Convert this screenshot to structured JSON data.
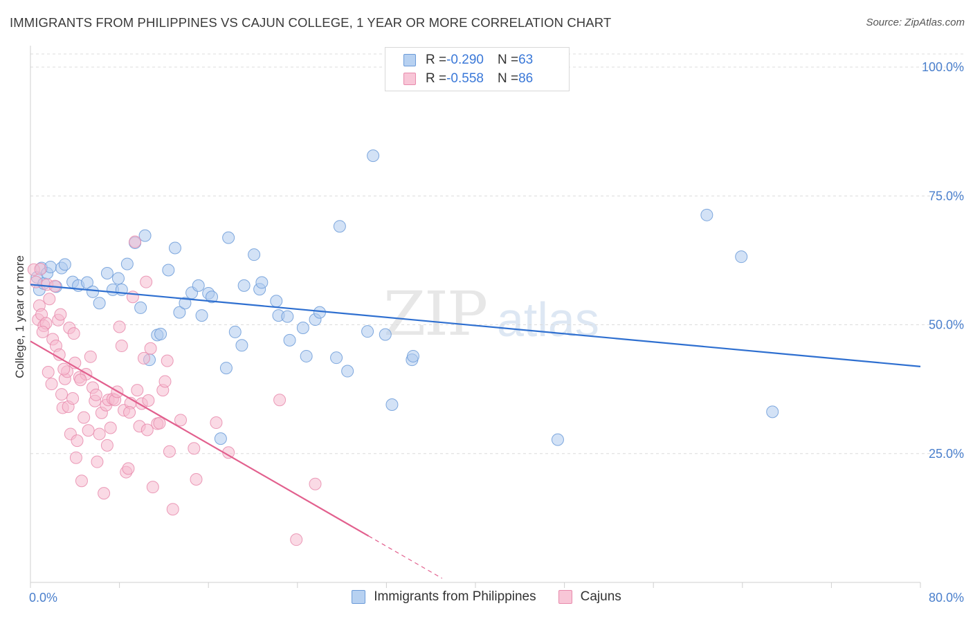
{
  "title": "IMMIGRANTS FROM PHILIPPINES VS CAJUN COLLEGE, 1 YEAR OR MORE CORRELATION CHART",
  "source": "Source: ZipAtlas.com",
  "watermark": {
    "part1": "ZIP",
    "part2": "atlas"
  },
  "legend": {
    "rows": [
      {
        "r_label": "R = ",
        "r_value": "-0.290",
        "n_label": "N = ",
        "n_value": "63"
      },
      {
        "r_label": "R = ",
        "r_value": "-0.558",
        "n_label": "N = ",
        "n_value": "86"
      }
    ]
  },
  "bottom_legend": [
    "Immigrants from Philippines",
    "Cajuns"
  ],
  "chart_data": {
    "type": "scatter",
    "title": "IMMIGRANTS FROM PHILIPPINES VS CAJUN COLLEGE, 1 YEAR OR MORE CORRELATION CHART",
    "xlabel": "",
    "ylabel": "College, 1 year or more",
    "xlim": [
      0,
      80
    ],
    "ylim": [
      0,
      105
    ],
    "x_tick_labels": [
      "0.0%",
      "80.0%"
    ],
    "y_tick_labels": [
      "100.0%",
      "75.0%",
      "50.0%",
      "25.0%"
    ],
    "y_ticks": [
      100,
      75,
      50,
      25
    ],
    "grid": true,
    "colors": {
      "blue_fill": "#aecbef",
      "blue_stroke": "#6a9ad8",
      "blue_line": "#2e6fd0",
      "pink_fill": "#f6bcd0",
      "pink_stroke": "#e88aac",
      "pink_line": "#e2608e"
    },
    "series": [
      {
        "name": "Immigrants from Philippines",
        "trend": {
          "x0": 0,
          "y0": 57.8,
          "x1": 80,
          "y1": 41.9
        },
        "points": [
          [
            0.6,
            59.2
          ],
          [
            0.8,
            56.8
          ],
          [
            1.0,
            61.0
          ],
          [
            1.2,
            58.0
          ],
          [
            1.5,
            60.0
          ],
          [
            1.8,
            61.2
          ],
          [
            2.3,
            57.4
          ],
          [
            2.8,
            61.0
          ],
          [
            3.1,
            61.7
          ],
          [
            3.8,
            58.3
          ],
          [
            4.3,
            57.6
          ],
          [
            5.1,
            58.2
          ],
          [
            5.6,
            56.4
          ],
          [
            6.2,
            54.2
          ],
          [
            6.9,
            60.0
          ],
          [
            7.4,
            56.8
          ],
          [
            7.9,
            59.0
          ],
          [
            8.2,
            56.8
          ],
          [
            8.7,
            61.8
          ],
          [
            9.4,
            65.9
          ],
          [
            9.9,
            53.3
          ],
          [
            10.3,
            67.3
          ],
          [
            10.7,
            43.2
          ],
          [
            11.4,
            48.0
          ],
          [
            11.7,
            48.2
          ],
          [
            12.4,
            60.6
          ],
          [
            13.0,
            64.9
          ],
          [
            13.4,
            52.4
          ],
          [
            13.9,
            54.2
          ],
          [
            14.5,
            56.2
          ],
          [
            15.1,
            57.6
          ],
          [
            15.4,
            51.8
          ],
          [
            16.0,
            56.1
          ],
          [
            16.3,
            55.4
          ],
          [
            17.1,
            27.9
          ],
          [
            17.6,
            41.6
          ],
          [
            17.8,
            66.9
          ],
          [
            18.4,
            48.6
          ],
          [
            19.0,
            46.0
          ],
          [
            19.2,
            57.6
          ],
          [
            20.1,
            63.6
          ],
          [
            20.6,
            56.9
          ],
          [
            20.8,
            58.2
          ],
          [
            22.1,
            54.6
          ],
          [
            22.3,
            51.8
          ],
          [
            23.1,
            51.6
          ],
          [
            23.3,
            47.0
          ],
          [
            24.5,
            49.4
          ],
          [
            24.8,
            43.9
          ],
          [
            25.6,
            51.0
          ],
          [
            26.0,
            52.4
          ],
          [
            27.5,
            43.6
          ],
          [
            27.8,
            69.1
          ],
          [
            28.5,
            41.0
          ],
          [
            30.3,
            48.7
          ],
          [
            30.8,
            82.8
          ],
          [
            31.9,
            48.1
          ],
          [
            32.5,
            34.5
          ],
          [
            34.3,
            43.2
          ],
          [
            34.4,
            43.9
          ],
          [
            47.4,
            27.7
          ],
          [
            60.8,
            71.3
          ],
          [
            63.9,
            63.2
          ],
          [
            66.7,
            33.1
          ]
        ]
      },
      {
        "name": "Cajuns",
        "trend": {
          "x0": 0,
          "y0": 46.8,
          "x1": 30.4,
          "y1": 9.0,
          "dash_to_x": 37.0
        },
        "points": [
          [
            0.3,
            60.7
          ],
          [
            0.5,
            58.3
          ],
          [
            0.7,
            51.0
          ],
          [
            0.8,
            53.7
          ],
          [
            0.9,
            60.8
          ],
          [
            1.0,
            52.0
          ],
          [
            1.2,
            49.8
          ],
          [
            1.4,
            50.3
          ],
          [
            1.5,
            57.8
          ],
          [
            1.6,
            40.8
          ],
          [
            1.7,
            55.0
          ],
          [
            1.9,
            38.5
          ],
          [
            2.0,
            47.2
          ],
          [
            2.2,
            57.5
          ],
          [
            2.3,
            45.9
          ],
          [
            2.5,
            50.9
          ],
          [
            2.7,
            52.0
          ],
          [
            2.8,
            36.5
          ],
          [
            2.9,
            33.9
          ],
          [
            3.1,
            39.5
          ],
          [
            3.3,
            40.9
          ],
          [
            3.4,
            34.1
          ],
          [
            3.5,
            49.4
          ],
          [
            3.6,
            28.8
          ],
          [
            3.8,
            35.7
          ],
          [
            3.9,
            48.3
          ],
          [
            4.0,
            42.6
          ],
          [
            4.1,
            24.2
          ],
          [
            4.2,
            27.5
          ],
          [
            4.4,
            39.8
          ],
          [
            4.6,
            19.7
          ],
          [
            4.8,
            32.0
          ],
          [
            5.0,
            40.4
          ],
          [
            5.2,
            29.5
          ],
          [
            5.4,
            43.8
          ],
          [
            5.6,
            37.8
          ],
          [
            5.8,
            35.2
          ],
          [
            6.0,
            23.4
          ],
          [
            6.2,
            28.8
          ],
          [
            6.4,
            32.9
          ],
          [
            6.6,
            17.3
          ],
          [
            6.8,
            34.4
          ],
          [
            7.0,
            35.4
          ],
          [
            7.2,
            30.0
          ],
          [
            7.4,
            35.6
          ],
          [
            7.6,
            35.4
          ],
          [
            7.8,
            37.0
          ],
          [
            8.0,
            49.6
          ],
          [
            8.2,
            45.9
          ],
          [
            8.4,
            33.4
          ],
          [
            8.6,
            21.4
          ],
          [
            8.8,
            22.1
          ],
          [
            9.0,
            34.8
          ],
          [
            9.2,
            55.4
          ],
          [
            9.4,
            66.1
          ],
          [
            9.6,
            37.3
          ],
          [
            9.8,
            30.3
          ],
          [
            10.0,
            34.7
          ],
          [
            10.2,
            43.5
          ],
          [
            10.4,
            58.3
          ],
          [
            10.6,
            35.3
          ],
          [
            10.8,
            45.4
          ],
          [
            11.0,
            18.5
          ],
          [
            11.4,
            30.8
          ],
          [
            11.6,
            30.9
          ],
          [
            11.9,
            37.3
          ],
          [
            12.1,
            39.0
          ],
          [
            12.3,
            43.0
          ],
          [
            12.5,
            25.4
          ],
          [
            12.8,
            14.2
          ],
          [
            13.5,
            31.5
          ],
          [
            14.7,
            26.0
          ],
          [
            14.9,
            20.0
          ],
          [
            16.7,
            31.0
          ],
          [
            17.8,
            25.2
          ],
          [
            22.4,
            35.4
          ],
          [
            23.9,
            8.3
          ],
          [
            25.6,
            19.1
          ],
          [
            3.0,
            41.4
          ],
          [
            4.5,
            39.3
          ],
          [
            6.9,
            26.6
          ],
          [
            2.6,
            44.2
          ],
          [
            1.1,
            48.6
          ],
          [
            5.9,
            36.4
          ],
          [
            8.9,
            33.0
          ],
          [
            10.5,
            29.6
          ]
        ]
      }
    ]
  }
}
